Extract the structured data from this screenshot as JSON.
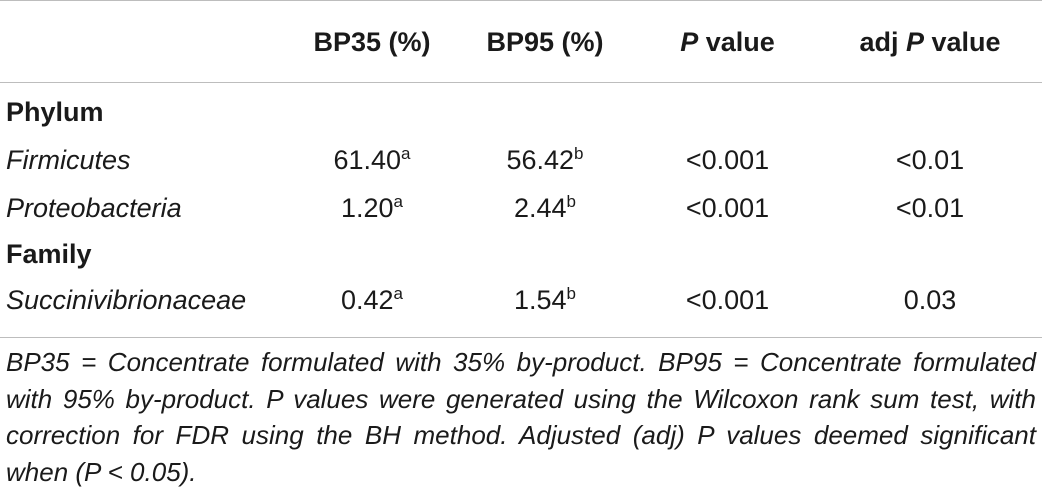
{
  "table": {
    "columns": [
      "",
      "BP35 (%)",
      "BP95 (%)",
      "P value",
      "adj P value"
    ],
    "header_italic_p": "P",
    "header_p_suffix": " value",
    "header_adj_prefix": "adj ",
    "groups": [
      {
        "name": "Phylum",
        "rows": [
          {
            "taxon": "Firmicutes",
            "bp35": "61.40",
            "bp35_sup": "a",
            "bp95": "56.42",
            "bp95_sup": "b",
            "p": "<0.001",
            "adj_p": "<0.01"
          },
          {
            "taxon": "Proteobacteria",
            "bp35": "1.20",
            "bp35_sup": "a",
            "bp95": "2.44",
            "bp95_sup": "b",
            "p": "<0.001",
            "adj_p": "<0.01"
          }
        ]
      },
      {
        "name": "Family",
        "rows": [
          {
            "taxon": "Succinivibrionaceae",
            "bp35": "0.42",
            "bp35_sup": "a",
            "bp95": "1.54",
            "bp95_sup": "b",
            "p": "<0.001",
            "adj_p": "0.03"
          }
        ]
      }
    ],
    "footnote": "BP35 = Concentrate formulated with 35% by-product. BP95 = Concentrate formulated with 95% by-product. P values were generated using the Wilcoxon rank sum test, with correction for FDR using the BH method. Adjusted (adj) P values deemed significant when (P < 0.05)."
  }
}
